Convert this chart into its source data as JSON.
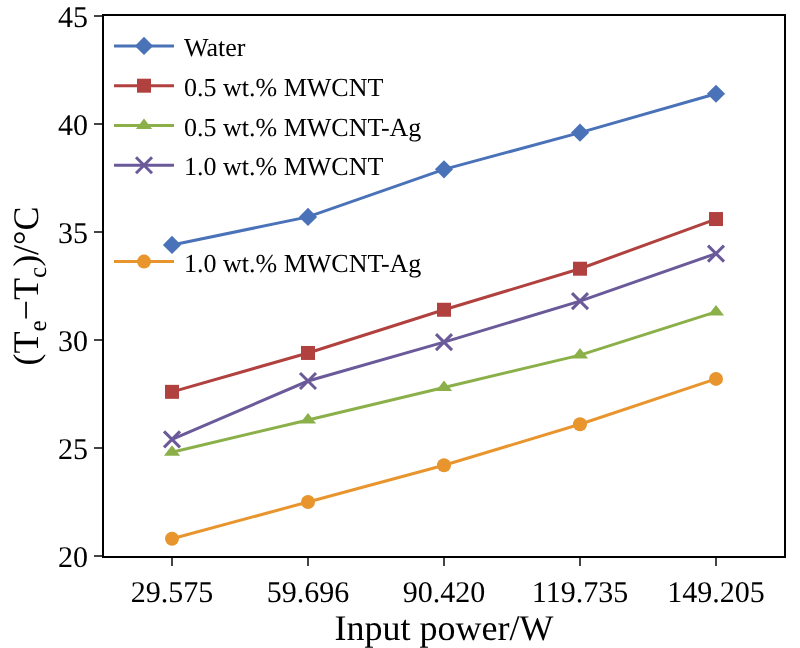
{
  "chart_data": {
    "type": "line",
    "xlabel": "Input power/W",
    "ylabel": "(T$_{e}$−T$_{c}$)/°C",
    "categories": [
      "29.575",
      "59.696",
      "90.420",
      "119.735",
      "149.205"
    ],
    "ylim": [
      20,
      45
    ],
    "yticks": [
      20,
      25,
      30,
      35,
      40,
      45
    ],
    "grid": false,
    "legend": "top left",
    "line_style": "solid",
    "series": [
      {
        "name": "Water",
        "color": "#4a72b8",
        "marker": "diamond",
        "values": [
          34.4,
          35.7,
          37.9,
          39.6,
          41.4
        ]
      },
      {
        "name": "0.5 wt.% MWCNT",
        "color": "#b0413e",
        "marker": "square",
        "values": [
          27.6,
          29.4,
          31.4,
          33.3,
          35.6
        ]
      },
      {
        "name": "0.5 wt.% MWCNT-Ag",
        "color": "#8bb04a",
        "marker": "triangle",
        "values": [
          24.8,
          26.3,
          27.8,
          29.3,
          31.3
        ]
      },
      {
        "name": "1.0 wt.% MWCNT",
        "color": "#6a5a9a",
        "marker": "cross",
        "values": [
          25.4,
          28.1,
          29.9,
          31.8,
          34.0
        ]
      },
      {
        "name": "1.0 wt.% MWCNT-Ag",
        "color": "#e8952e",
        "marker": "circle",
        "values": [
          20.8,
          22.5,
          24.2,
          26.1,
          28.2
        ]
      }
    ]
  }
}
